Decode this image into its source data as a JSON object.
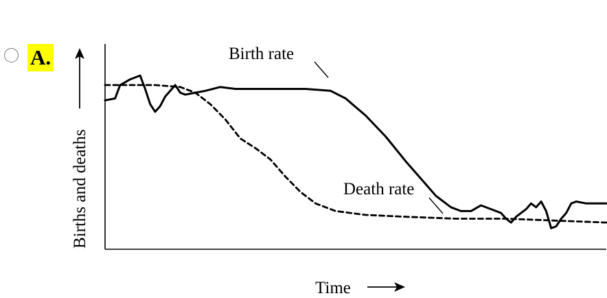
{
  "question_option": {
    "letter": "A.",
    "selected": false
  },
  "chart_data": {
    "type": "line",
    "title": "",
    "xlabel": "Time",
    "ylabel": "Births and deaths",
    "xlim": [
      0,
      100
    ],
    "ylim": [
      0,
      100
    ],
    "grid": false,
    "x_ticks": [],
    "y_ticks": [],
    "annotations": [
      {
        "text": "Birth rate",
        "series": "Birth rate"
      },
      {
        "text": "Death rate",
        "series": "Death rate"
      }
    ],
    "series": [
      {
        "name": "Birth rate",
        "style": "solid",
        "points": [
          [
            0,
            78
          ],
          [
            2,
            79
          ],
          [
            3,
            86
          ],
          [
            5,
            89
          ],
          [
            7,
            91
          ],
          [
            8,
            84
          ],
          [
            9,
            76
          ],
          [
            10,
            72
          ],
          [
            11,
            75
          ],
          [
            12,
            80
          ],
          [
            13,
            83
          ],
          [
            14,
            86
          ],
          [
            15,
            82
          ],
          [
            16,
            81
          ],
          [
            18,
            82
          ],
          [
            20,
            83
          ],
          [
            23,
            85
          ],
          [
            26,
            84
          ],
          [
            30,
            84
          ],
          [
            35,
            84
          ],
          [
            40,
            84
          ],
          [
            45,
            83
          ],
          [
            48,
            79
          ],
          [
            52,
            70
          ],
          [
            56,
            59
          ],
          [
            60,
            46
          ],
          [
            63,
            37
          ],
          [
            66,
            28
          ],
          [
            69,
            22
          ],
          [
            71,
            20
          ],
          [
            73,
            20
          ],
          [
            75,
            23
          ],
          [
            77,
            21
          ],
          [
            79,
            19
          ],
          [
            80,
            16
          ],
          [
            81,
            14
          ],
          [
            82,
            17
          ],
          [
            84,
            21
          ],
          [
            85,
            24
          ],
          [
            86,
            22
          ],
          [
            87,
            25
          ],
          [
            88,
            20
          ],
          [
            89,
            11
          ],
          [
            90,
            12
          ],
          [
            91,
            16
          ],
          [
            92,
            19
          ],
          [
            93,
            24
          ],
          [
            94,
            25
          ],
          [
            96,
            24
          ],
          [
            98,
            24
          ],
          [
            100,
            24
          ]
        ]
      },
      {
        "name": "Death rate",
        "style": "dashed",
        "points": [
          [
            0,
            86
          ],
          [
            10,
            86
          ],
          [
            15,
            85
          ],
          [
            18,
            82
          ],
          [
            21,
            76
          ],
          [
            24,
            68
          ],
          [
            27,
            58
          ],
          [
            30,
            53
          ],
          [
            33,
            47
          ],
          [
            36,
            38
          ],
          [
            39,
            30
          ],
          [
            42,
            24
          ],
          [
            46,
            20
          ],
          [
            52,
            18
          ],
          [
            60,
            17
          ],
          [
            70,
            16
          ],
          [
            80,
            16
          ],
          [
            90,
            15
          ],
          [
            100,
            14
          ]
        ]
      }
    ]
  }
}
